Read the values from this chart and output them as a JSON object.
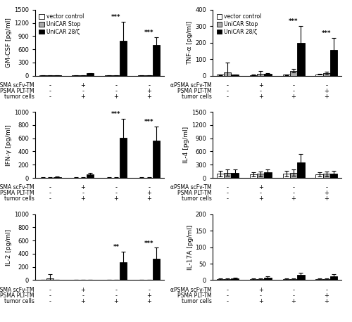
{
  "panels": [
    {
      "ylabel": "GM-CSF [pg/ml]",
      "ylim": [
        0,
        1500
      ],
      "yticks": [
        0,
        300,
        600,
        900,
        1200,
        1500
      ],
      "groups": [
        {
          "values": [
            2,
            2,
            2
          ],
          "errors": [
            1,
            1,
            1
          ]
        },
        {
          "values": [
            2,
            2,
            50
          ],
          "errors": [
            1,
            1,
            15
          ]
        },
        {
          "values": [
            2,
            2,
            800
          ],
          "errors": [
            1,
            1,
            430
          ]
        },
        {
          "values": [
            2,
            2,
            700
          ],
          "errors": [
            1,
            1,
            180
          ]
        }
      ],
      "stars": [
        null,
        null,
        "***",
        "***"
      ]
    },
    {
      "ylabel": "TNF-α [pg/ml]",
      "ylim": [
        0,
        400
      ],
      "yticks": [
        0,
        100,
        200,
        300,
        400
      ],
      "groups": [
        {
          "values": [
            5,
            20,
            5
          ],
          "errors": [
            2,
            60,
            2
          ]
        },
        {
          "values": [
            3,
            10,
            10
          ],
          "errors": [
            2,
            20,
            5
          ]
        },
        {
          "values": [
            5,
            30,
            200
          ],
          "errors": [
            3,
            10,
            100
          ]
        },
        {
          "values": [
            8,
            15,
            155
          ],
          "errors": [
            3,
            8,
            75
          ]
        }
      ],
      "stars": [
        null,
        null,
        "***",
        "***"
      ]
    },
    {
      "ylabel": "IFN-γ [pg/ml]",
      "ylim": [
        0,
        1000
      ],
      "yticks": [
        0,
        200,
        400,
        600,
        800,
        1000
      ],
      "groups": [
        {
          "values": [
            5,
            5,
            12
          ],
          "errors": [
            3,
            3,
            5
          ]
        },
        {
          "values": [
            5,
            5,
            55
          ],
          "errors": [
            3,
            3,
            20
          ]
        },
        {
          "values": [
            5,
            5,
            610
          ],
          "errors": [
            3,
            3,
            290
          ]
        },
        {
          "values": [
            5,
            5,
            560
          ],
          "errors": [
            3,
            3,
            220
          ]
        }
      ],
      "stars": [
        null,
        null,
        "***",
        "***"
      ]
    },
    {
      "ylabel": "IL-4 [pg/ml]",
      "ylim": [
        0,
        1500
      ],
      "yticks": [
        0,
        300,
        600,
        900,
        1200,
        1500
      ],
      "groups": [
        {
          "values": [
            100,
            120,
            120
          ],
          "errors": [
            60,
            70,
            70
          ]
        },
        {
          "values": [
            80,
            90,
            130
          ],
          "errors": [
            50,
            60,
            70
          ]
        },
        {
          "values": [
            100,
            120,
            350
          ],
          "errors": [
            60,
            70,
            200
          ]
        },
        {
          "values": [
            80,
            90,
            100
          ],
          "errors": [
            50,
            55,
            60
          ]
        }
      ],
      "stars": [
        null,
        null,
        null,
        null
      ]
    },
    {
      "ylabel": "IL-2 [pg/ml]",
      "ylim": [
        0,
        1000
      ],
      "yticks": [
        0,
        200,
        400,
        600,
        800,
        1000
      ],
      "groups": [
        {
          "values": [
            5,
            30,
            5
          ],
          "errors": [
            3,
            60,
            3
          ]
        },
        {
          "values": [
            5,
            5,
            5
          ],
          "errors": [
            3,
            3,
            3
          ]
        },
        {
          "values": [
            5,
            5,
            270
          ],
          "errors": [
            3,
            3,
            160
          ]
        },
        {
          "values": [
            5,
            5,
            320
          ],
          "errors": [
            3,
            3,
            170
          ]
        }
      ],
      "stars": [
        null,
        null,
        "**",
        "***"
      ]
    },
    {
      "ylabel": "IL-17A [pg/ml]",
      "ylim": [
        0,
        200
      ],
      "yticks": [
        0,
        50,
        100,
        150,
        200
      ],
      "groups": [
        {
          "values": [
            3,
            3,
            5
          ],
          "errors": [
            2,
            2,
            3
          ]
        },
        {
          "values": [
            3,
            3,
            8
          ],
          "errors": [
            2,
            2,
            4
          ]
        },
        {
          "values": [
            3,
            3,
            15
          ],
          "errors": [
            2,
            2,
            8
          ]
        },
        {
          "values": [
            3,
            3,
            12
          ],
          "errors": [
            2,
            2,
            6
          ]
        }
      ],
      "stars": [
        null,
        null,
        null,
        null
      ]
    }
  ],
  "colors": [
    "white",
    "#aaaaaa",
    "black"
  ],
  "bar_edgecolor": "black",
  "bar_width": 0.22,
  "sign_map": [
    [
      "-",
      "-",
      "-"
    ],
    [
      "+",
      "-",
      "+"
    ],
    [
      "-",
      "-",
      "+"
    ],
    [
      "-",
      "+",
      "+"
    ]
  ],
  "xticklabels_rows": [
    "αPSMA scFv-TM",
    "PSMA PLT-TM",
    "tumor cells"
  ],
  "legend_labels": [
    "vector control",
    "UniCAR Stop",
    "UniCAR 28/ζ"
  ]
}
